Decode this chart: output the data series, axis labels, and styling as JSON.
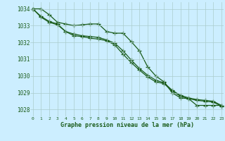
{
  "title": "Graphe pression niveau de la mer (hPa)",
  "bg_color": "#cceeff",
  "grid_color": "#aacccc",
  "line_color": "#1a5c1a",
  "x_labels": [
    "0",
    "1",
    "2",
    "3",
    "4",
    "5",
    "6",
    "7",
    "8",
    "9",
    "10",
    "11",
    "12",
    "13",
    "14",
    "15",
    "16",
    "17",
    "18",
    "19",
    "20",
    "21",
    "22",
    "23"
  ],
  "ylim": [
    1027.6,
    1034.4
  ],
  "yticks": [
    1028,
    1029,
    1030,
    1031,
    1032,
    1033,
    1034
  ],
  "line1": [
    1034.0,
    1034.0,
    1033.65,
    1033.2,
    1033.1,
    1033.0,
    1033.05,
    1033.1,
    1033.1,
    1032.65,
    1032.55,
    1032.55,
    1032.05,
    1031.5,
    1030.55,
    1030.0,
    1029.65,
    1029.0,
    1028.7,
    1028.65,
    1028.25,
    1028.25,
    1028.25,
    1028.25
  ],
  "line2": [
    1034.0,
    1033.55,
    1033.25,
    1033.1,
    1032.65,
    1032.5,
    1032.4,
    1032.35,
    1032.3,
    1032.15,
    1031.95,
    1031.5,
    1030.95,
    1030.45,
    1030.05,
    1029.75,
    1029.6,
    1029.15,
    1028.85,
    1028.7,
    1028.6,
    1028.55,
    1028.5,
    1028.25
  ],
  "line3": [
    1034.0,
    1033.5,
    1033.2,
    1033.05,
    1032.65,
    1032.4,
    1032.35,
    1032.25,
    1032.2,
    1032.1,
    1031.85,
    1031.3,
    1030.8,
    1030.35,
    1029.95,
    1029.65,
    1029.55,
    1029.1,
    1028.8,
    1028.65,
    1028.55,
    1028.5,
    1028.45,
    1028.2
  ]
}
